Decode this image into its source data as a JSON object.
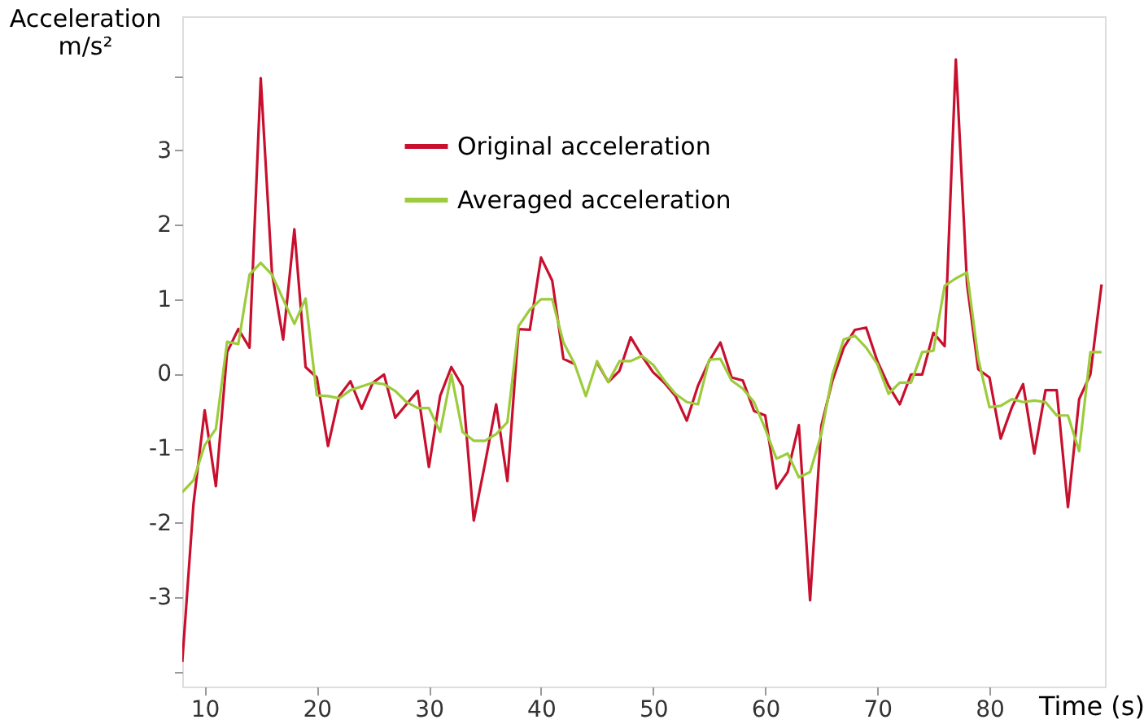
{
  "chart_data": {
    "type": "line",
    "ylabel": "Acceleration m/s²",
    "xlabel": "Time (s)",
    "x": [
      8,
      9,
      10,
      11,
      12,
      13,
      14,
      15,
      16,
      17,
      18,
      19,
      20,
      21,
      22,
      23,
      24,
      25,
      26,
      27,
      28,
      29,
      30,
      31,
      32,
      33,
      34,
      35,
      36,
      37,
      38,
      39,
      40,
      41,
      42,
      43,
      44,
      45,
      46,
      47,
      48,
      49,
      50,
      51,
      52,
      53,
      54,
      55,
      56,
      57,
      58,
      59,
      60,
      61,
      62,
      63,
      64,
      65,
      66,
      67,
      68,
      69,
      70,
      71,
      72,
      73,
      74,
      75,
      76,
      77,
      78,
      79,
      80,
      81,
      82,
      83,
      84,
      85,
      86,
      87,
      88,
      89,
      90
    ],
    "series": [
      {
        "name": "Original acceleration",
        "color": "#c8102e",
        "values": [
          -3.87,
          -1.75,
          -0.49,
          -1.51,
          0.29,
          0.6,
          0.35,
          3.97,
          1.36,
          0.46,
          1.94,
          0.09,
          -0.05,
          -0.97,
          -0.3,
          -0.1,
          -0.47,
          -0.12,
          -0.01,
          -0.59,
          -0.41,
          -0.23,
          -1.25,
          -0.3,
          0.09,
          -0.17,
          -1.97,
          -1.21,
          -0.41,
          -1.44,
          0.6,
          0.59,
          1.56,
          1.25,
          0.2,
          0.13,
          null,
          0.15,
          -0.11,
          0.04,
          0.49,
          0.24,
          0.02,
          -0.12,
          -0.3,
          -0.63,
          -0.16,
          0.17,
          0.42,
          -0.05,
          -0.09,
          -0.5,
          -0.56,
          -1.54,
          -1.32,
          -0.69,
          -3.04,
          -0.7,
          -0.09,
          0.35,
          0.59,
          0.62,
          0.17,
          -0.16,
          -0.41,
          -0.01,
          -0.01,
          0.55,
          0.37,
          4.22,
          1.2,
          0.06,
          -0.05,
          -0.87,
          -0.45,
          -0.14,
          -1.07,
          -0.22,
          -0.22,
          -1.79,
          -0.34,
          -0.01,
          1.2
        ]
      },
      {
        "name": "Averaged acceleration",
        "color": "#9ccc3c",
        "values": [
          -1.59,
          -1.43,
          -0.96,
          -0.74,
          0.43,
          0.4,
          1.33,
          1.49,
          1.33,
          1.0,
          0.67,
          1.01,
          -0.29,
          -0.3,
          -0.33,
          -0.22,
          -0.17,
          -0.12,
          -0.14,
          -0.23,
          -0.38,
          -0.46,
          -0.46,
          -0.78,
          -0.01,
          -0.78,
          -0.9,
          -0.9,
          -0.81,
          -0.65,
          0.64,
          0.86,
          1.0,
          1.0,
          0.42,
          0.13,
          -0.3,
          0.17,
          -0.11,
          0.17,
          0.17,
          0.24,
          0.12,
          -0.09,
          -0.27,
          -0.38,
          -0.41,
          0.19,
          0.2,
          -0.09,
          -0.2,
          -0.38,
          -0.74,
          -1.14,
          -1.07,
          -1.39,
          -1.32,
          -0.81,
          -0.01,
          0.46,
          0.51,
          0.35,
          0.13,
          -0.27,
          -0.12,
          -0.12,
          0.29,
          0.31,
          1.18,
          1.28,
          1.36,
          0.2,
          -0.45,
          -0.43,
          -0.34,
          -0.38,
          -0.36,
          -0.38,
          -0.56,
          -0.56,
          -1.04,
          0.29,
          0.29
        ]
      }
    ],
    "xlim": [
      8,
      90.3
    ],
    "xticks": [
      10,
      20,
      30,
      40,
      50,
      60,
      70,
      80
    ],
    "ylim": [
      -4.2,
      4.8
    ],
    "yticks": [
      {
        "value": -4,
        "label": null
      },
      -3,
      -2,
      -1,
      0,
      1,
      2,
      3,
      {
        "value": 4,
        "label": null
      }
    ],
    "grid": false,
    "legend": "top",
    "marker": "none",
    "line_style": "solid"
  }
}
